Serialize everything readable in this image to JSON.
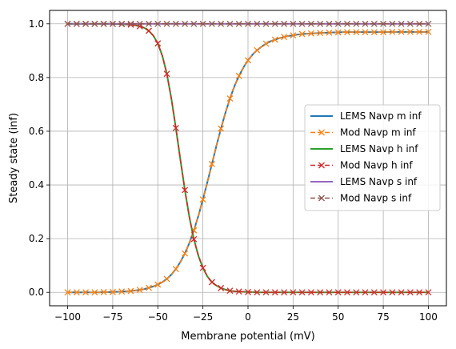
{
  "chart_data": {
    "type": "line",
    "xlabel": "Membrane potential (mV)",
    "ylabel": "Steady state (inf)",
    "xlim": [
      -110,
      110
    ],
    "ylim": [
      -0.05,
      1.05
    ],
    "xticks": [
      -100,
      -75,
      -50,
      -25,
      0,
      25,
      50,
      75,
      100
    ],
    "xtick_labels": [
      "−100",
      "−75",
      "−50",
      "−25",
      "0",
      "25",
      "50",
      "75",
      "100"
    ],
    "yticks": [
      0.0,
      0.2,
      0.4,
      0.6,
      0.8,
      1.0
    ],
    "ytick_labels": [
      "0.0",
      "0.2",
      "0.4",
      "0.6",
      "0.8",
      "1.0"
    ],
    "grid": true,
    "legend_position": "center-right",
    "x": [
      -100,
      -97.5,
      -95,
      -92.5,
      -90,
      -87.5,
      -85,
      -82.5,
      -80,
      -77.5,
      -75,
      -72.5,
      -70,
      -67.5,
      -65,
      -62.5,
      -60,
      -57.5,
      -55,
      -52.5,
      -50,
      -47.5,
      -45,
      -42.5,
      -40,
      -37.5,
      -35,
      -32.5,
      -30,
      -27.5,
      -25,
      -22.5,
      -20,
      -17.5,
      -15,
      -12.5,
      -10,
      -7.5,
      -5,
      -2.5,
      0,
      2.5,
      5,
      7.5,
      10,
      12.5,
      15,
      17.5,
      20,
      22.5,
      25,
      27.5,
      30,
      32.5,
      35,
      37.5,
      40,
      42.5,
      45,
      47.5,
      50,
      52.5,
      55,
      57.5,
      60,
      62.5,
      65,
      67.5,
      70,
      72.5,
      75,
      77.5,
      80,
      82.5,
      85,
      87.5,
      90,
      92.5,
      95,
      97.5,
      100
    ],
    "series": [
      {
        "name": "LEMS Navp m inf",
        "color": "#1f77b4",
        "style": "solid",
        "marker": "none",
        "values": [
          0.0,
          0.0,
          0.0,
          0.0,
          0.0,
          0.0,
          0.0,
          0.0,
          0.001,
          0.001,
          0.001,
          0.002,
          0.003,
          0.004,
          0.005,
          0.007,
          0.009,
          0.012,
          0.017,
          0.022,
          0.029,
          0.038,
          0.05,
          0.066,
          0.087,
          0.113,
          0.145,
          0.184,
          0.231,
          0.285,
          0.346,
          0.411,
          0.478,
          0.546,
          0.61,
          0.669,
          0.722,
          0.768,
          0.806,
          0.838,
          0.864,
          0.885,
          0.902,
          0.915,
          0.926,
          0.935,
          0.941,
          0.947,
          0.951,
          0.955,
          0.957,
          0.96,
          0.962,
          0.963,
          0.964,
          0.965,
          0.966,
          0.967,
          0.967,
          0.968,
          0.968,
          0.969,
          0.969,
          0.969,
          0.969,
          0.969,
          0.969,
          0.969,
          0.969,
          0.969,
          0.969,
          0.97,
          0.97,
          0.97,
          0.97,
          0.97,
          0.97,
          0.97,
          0.97,
          0.97,
          0.97
        ]
      },
      {
        "name": "Mod Navp m inf",
        "color": "#ff7f0e",
        "style": "dashed",
        "marker": "x",
        "marker_x": [
          -100,
          -95,
          -90,
          -85,
          -80,
          -75,
          -70,
          -65,
          -60,
          -55,
          -50,
          -45,
          -40,
          -35,
          -30,
          -25,
          -20,
          -15,
          -10,
          -5,
          0,
          5,
          10,
          15,
          20,
          25,
          30,
          35,
          40,
          45,
          50,
          55,
          60,
          65,
          70,
          75,
          80,
          85,
          90,
          95,
          100
        ],
        "values": [
          0.0,
          0.0,
          0.0,
          0.0,
          0.0,
          0.0,
          0.0,
          0.0,
          0.001,
          0.001,
          0.001,
          0.002,
          0.003,
          0.004,
          0.005,
          0.007,
          0.009,
          0.012,
          0.017,
          0.022,
          0.029,
          0.038,
          0.05,
          0.066,
          0.087,
          0.113,
          0.145,
          0.184,
          0.231,
          0.285,
          0.346,
          0.411,
          0.478,
          0.546,
          0.61,
          0.669,
          0.722,
          0.768,
          0.806,
          0.838,
          0.864,
          0.885,
          0.902,
          0.915,
          0.926,
          0.935,
          0.941,
          0.947,
          0.951,
          0.955,
          0.957,
          0.96,
          0.962,
          0.963,
          0.964,
          0.965,
          0.966,
          0.967,
          0.967,
          0.968,
          0.968,
          0.969,
          0.969,
          0.969,
          0.969,
          0.969,
          0.969,
          0.969,
          0.969,
          0.969,
          0.969,
          0.97,
          0.97,
          0.97,
          0.97,
          0.97,
          0.97,
          0.97,
          0.97,
          0.97,
          0.97
        ]
      },
      {
        "name": "LEMS Navp h inf",
        "color": "#2ca02c",
        "style": "solid",
        "marker": "none",
        "values": [
          1.0,
          1.0,
          1.0,
          1.0,
          1.0,
          1.0,
          1.0,
          1.0,
          1.0,
          1.0,
          1.0,
          0.999,
          0.999,
          0.998,
          0.997,
          0.995,
          0.991,
          0.985,
          0.974,
          0.956,
          0.927,
          0.881,
          0.814,
          0.722,
          0.612,
          0.495,
          0.381,
          0.28,
          0.198,
          0.136,
          0.091,
          0.059,
          0.038,
          0.025,
          0.016,
          0.01,
          0.006,
          0.004,
          0.003,
          0.002,
          0.001,
          0.001,
          0.0,
          0.0,
          0.0,
          0.0,
          0.0,
          0.0,
          0.0,
          0.0,
          0.0,
          0.0,
          0.0,
          0.0,
          0.0,
          0.0,
          0.0,
          0.0,
          0.0,
          0.0,
          0.0,
          0.0,
          0.0,
          0.0,
          0.0,
          0.0,
          0.0,
          0.0,
          0.0,
          0.0,
          0.0,
          0.0,
          0.0,
          0.0,
          0.0,
          0.0,
          0.0,
          0.0,
          0.0,
          0.0,
          0.0
        ]
      },
      {
        "name": "Mod Navp h inf",
        "color": "#d62728",
        "style": "dashed",
        "marker": "x",
        "values": [
          1.0,
          1.0,
          1.0,
          1.0,
          1.0,
          1.0,
          1.0,
          1.0,
          1.0,
          1.0,
          1.0,
          0.999,
          0.999,
          0.998,
          0.997,
          0.995,
          0.991,
          0.985,
          0.974,
          0.956,
          0.927,
          0.881,
          0.814,
          0.722,
          0.612,
          0.495,
          0.381,
          0.28,
          0.198,
          0.136,
          0.091,
          0.059,
          0.038,
          0.025,
          0.016,
          0.01,
          0.006,
          0.004,
          0.003,
          0.002,
          0.001,
          0.001,
          0.0,
          0.0,
          0.0,
          0.0,
          0.0,
          0.0,
          0.0,
          0.0,
          0.0,
          0.0,
          0.0,
          0.0,
          0.0,
          0.0,
          0.0,
          0.0,
          0.0,
          0.0,
          0.0,
          0.0,
          0.0,
          0.0,
          0.0,
          0.0,
          0.0,
          0.0,
          0.0,
          0.0,
          0.0,
          0.0,
          0.0,
          0.0,
          0.0,
          0.0,
          0.0,
          0.0,
          0.0,
          0.0,
          0.0
        ]
      },
      {
        "name": "LEMS Navp s inf",
        "color": "#9467bd",
        "style": "solid",
        "marker": "none",
        "values": [
          1.0,
          1.0,
          1.0,
          1.0,
          1.0,
          1.0,
          1.0,
          1.0,
          1.0,
          1.0,
          1.0,
          1.0,
          1.0,
          1.0,
          1.0,
          1.0,
          1.0,
          1.0,
          1.0,
          1.0,
          1.0,
          1.0,
          1.0,
          1.0,
          1.0,
          1.0,
          1.0,
          1.0,
          1.0,
          1.0,
          1.0,
          1.0,
          1.0,
          1.0,
          1.0,
          1.0,
          1.0,
          1.0,
          1.0,
          1.0,
          1.0,
          1.0,
          1.0,
          1.0,
          1.0,
          1.0,
          1.0,
          1.0,
          1.0,
          1.0,
          1.0,
          1.0,
          1.0,
          1.0,
          1.0,
          1.0,
          1.0,
          1.0,
          1.0,
          1.0,
          1.0,
          1.0,
          1.0,
          1.0,
          1.0,
          1.0,
          1.0,
          1.0,
          1.0,
          1.0,
          1.0,
          1.0,
          1.0,
          1.0,
          1.0,
          1.0,
          1.0,
          1.0,
          1.0,
          1.0,
          1.0
        ]
      },
      {
        "name": "Mod Navp s inf",
        "color": "#8c564b",
        "style": "dashed",
        "marker": "x",
        "values": [
          1.0,
          1.0,
          1.0,
          1.0,
          1.0,
          1.0,
          1.0,
          1.0,
          1.0,
          1.0,
          1.0,
          1.0,
          1.0,
          1.0,
          1.0,
          1.0,
          1.0,
          1.0,
          1.0,
          1.0,
          1.0,
          1.0,
          1.0,
          1.0,
          1.0,
          1.0,
          1.0,
          1.0,
          1.0,
          1.0,
          1.0,
          1.0,
          1.0,
          1.0,
          1.0,
          1.0,
          1.0,
          1.0,
          1.0,
          1.0,
          1.0,
          1.0,
          1.0,
          1.0,
          1.0,
          1.0,
          1.0,
          1.0,
          1.0,
          1.0,
          1.0,
          1.0,
          1.0,
          1.0,
          1.0,
          1.0,
          1.0,
          1.0,
          1.0,
          1.0,
          1.0,
          1.0,
          1.0,
          1.0,
          1.0,
          1.0,
          1.0,
          1.0,
          1.0,
          1.0,
          1.0,
          1.0,
          1.0,
          1.0,
          1.0,
          1.0,
          1.0,
          1.0,
          1.0,
          1.0,
          1.0
        ]
      }
    ]
  }
}
